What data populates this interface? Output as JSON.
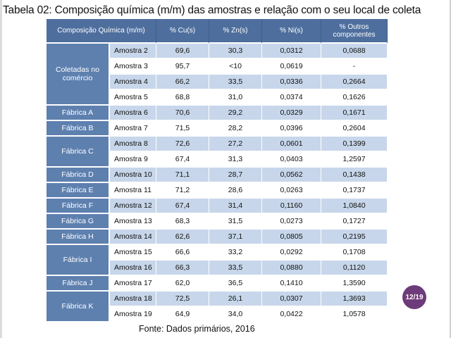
{
  "title": "Tabela 02: Composição química (m/m) das amostras e relação com o seu local de coleta",
  "table": {
    "headers": [
      "Composição Química (m/m)",
      "% Cu(s)",
      "% Zn(s)",
      "% Ni(s)",
      "% Outros componentes"
    ],
    "groups": [
      {
        "label": "Coletadas no comércio",
        "rows": [
          [
            "Amostra 2",
            "69,6",
            "30,3",
            "0,0312",
            "0,0688"
          ],
          [
            "Amostra 3",
            "95,7",
            "<10",
            "0,0619",
            "-"
          ],
          [
            "Amostra 4",
            "66,2",
            "33,5",
            "0,0336",
            "0,2664"
          ],
          [
            "Amostra 5",
            "68,8",
            "31,0",
            "0,0374",
            "0,1626"
          ]
        ]
      },
      {
        "label": "Fábrica A",
        "rows": [
          [
            "Amostra 6",
            "70,6",
            "29,2",
            "0,0329",
            "0,1671"
          ]
        ]
      },
      {
        "label": "Fábrica B",
        "rows": [
          [
            "Amostra 7",
            "71,5",
            "28,2",
            "0,0396",
            "0,2604"
          ]
        ]
      },
      {
        "label": "Fábrica C",
        "rows": [
          [
            "Amostra 8",
            "72,6",
            "27,2",
            "0,0601",
            "0,1399"
          ],
          [
            "Amostra 9",
            "67,4",
            "31,3",
            "0,0403",
            "1,2597"
          ]
        ]
      },
      {
        "label": "Fábrica D",
        "rows": [
          [
            "Amostra 10",
            "71,1",
            "28,7",
            "0,0562",
            "0,1438"
          ]
        ]
      },
      {
        "label": "Fábrica E",
        "rows": [
          [
            "Amostra 11",
            "71,2",
            "28,6",
            "0,0263",
            "0,1737"
          ]
        ]
      },
      {
        "label": "Fábrica F",
        "rows": [
          [
            "Amostra 12",
            "67,4",
            "31,4",
            "0,1160",
            "1,0840"
          ]
        ]
      },
      {
        "label": "Fábrica G",
        "rows": [
          [
            "Amostra 13",
            "68,3",
            "31,5",
            "0,0273",
            "0,1727"
          ]
        ]
      },
      {
        "label": "Fábrica H",
        "rows": [
          [
            "Amostra 14",
            "62,6",
            "37,1",
            "0,0805",
            "0,2195"
          ]
        ]
      },
      {
        "label": "Fábrica I",
        "rows": [
          [
            "Amostra 15",
            "66,6",
            "33,2",
            "0,0292",
            "0,1708"
          ],
          [
            "Amostra 16",
            "66,3",
            "33,5",
            "0,0880",
            "0,1120"
          ]
        ]
      },
      {
        "label": "Fábrica J",
        "rows": [
          [
            "Amostra 17",
            "62,0",
            "36,5",
            "0,1410",
            "1,3590"
          ]
        ]
      },
      {
        "label": "Fábrica K",
        "rows": [
          [
            "Amostra 18",
            "72,5",
            "26,1",
            "0,0307",
            "1,3693"
          ],
          [
            "Amostra 19",
            "64,9",
            "34,0",
            "0,0422",
            "1,0578"
          ]
        ]
      }
    ]
  },
  "source": "Fonte: Dados primários, 2016",
  "page_badge": "12/19",
  "colors": {
    "header_bg": "#4e6f9e",
    "group_bg": "#5e80af",
    "row_stripe": "#c7d6ea",
    "badge_bg": "#6e3b7a"
  }
}
